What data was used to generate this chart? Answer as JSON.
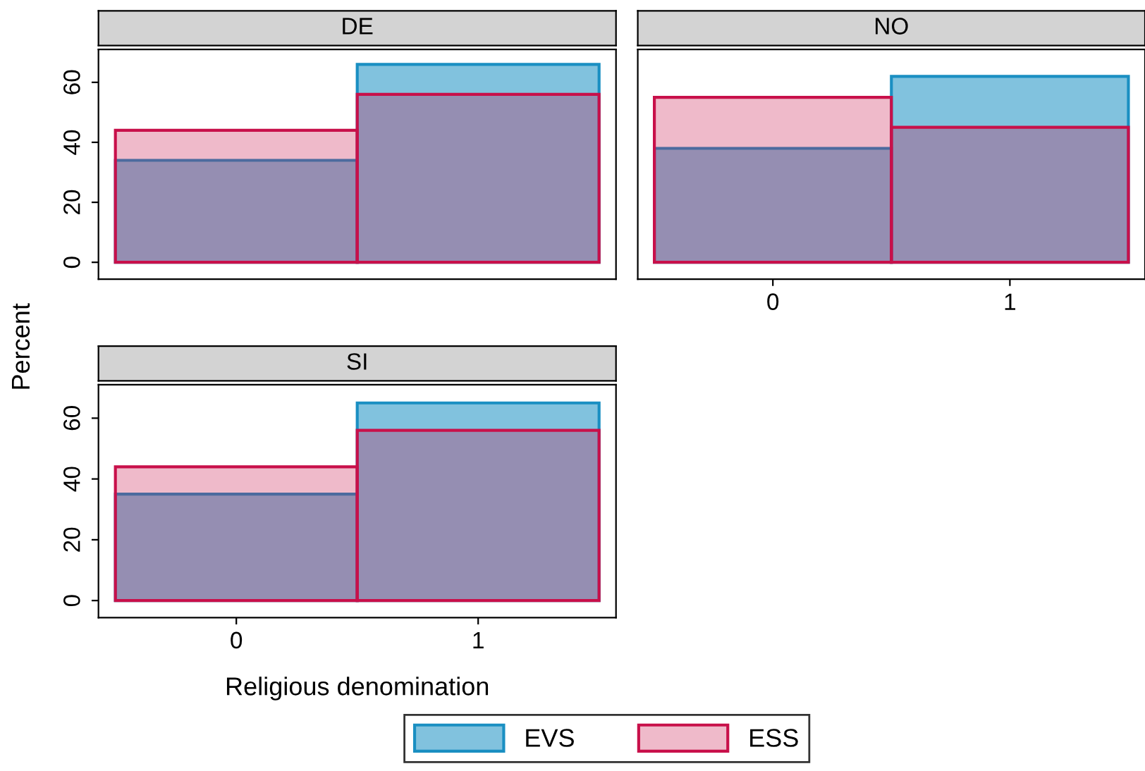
{
  "chart_data": [
    {
      "type": "histogram",
      "title": "DE",
      "bins": [
        -0.5,
        0.5,
        1.5
      ],
      "xlim": [
        -0.57,
        1.57
      ],
      "ylim": [
        -5.6,
        71
      ],
      "yticks": [
        0,
        20,
        40,
        60
      ],
      "xticks": [
        0,
        1
      ],
      "tick_labels": "y",
      "ylabel": "Percent",
      "series": [
        {
          "name": "EVS",
          "color": "#1a8fc2",
          "values": [
            34,
            66
          ]
        },
        {
          "name": "ESS",
          "color": "#c8104a",
          "values": [
            44,
            56
          ]
        }
      ],
      "legend": "bottom"
    },
    {
      "type": "histogram",
      "title": "NO",
      "bins": [
        -0.5,
        0.5,
        1.5
      ],
      "xlim": [
        -0.57,
        1.57
      ],
      "ylim": [
        -5.6,
        71
      ],
      "yticks": [
        0,
        20,
        40,
        60
      ],
      "xticks": [
        0,
        1
      ],
      "tick_labels": "x",
      "series": [
        {
          "color": "#1a8fc2",
          "values": [
            38,
            62
          ]
        },
        {
          "color": "#c8104a",
          "values": [
            55,
            45
          ]
        }
      ]
    },
    {
      "type": "histogram",
      "title": "SI",
      "bins": [
        -0.5,
        0.5,
        1.5
      ],
      "xlim": [
        -0.57,
        1.57
      ],
      "ylim": [
        -5.6,
        71
      ],
      "yticks": [
        0,
        20,
        40,
        60
      ],
      "xticks": [
        0,
        1
      ],
      "xlabel": "Religious denomination",
      "series": [
        {
          "color": "#1a8fc2",
          "values": [
            35,
            65
          ]
        },
        {
          "color": "#c8104a",
          "values": [
            44,
            56
          ]
        }
      ]
    }
  ]
}
